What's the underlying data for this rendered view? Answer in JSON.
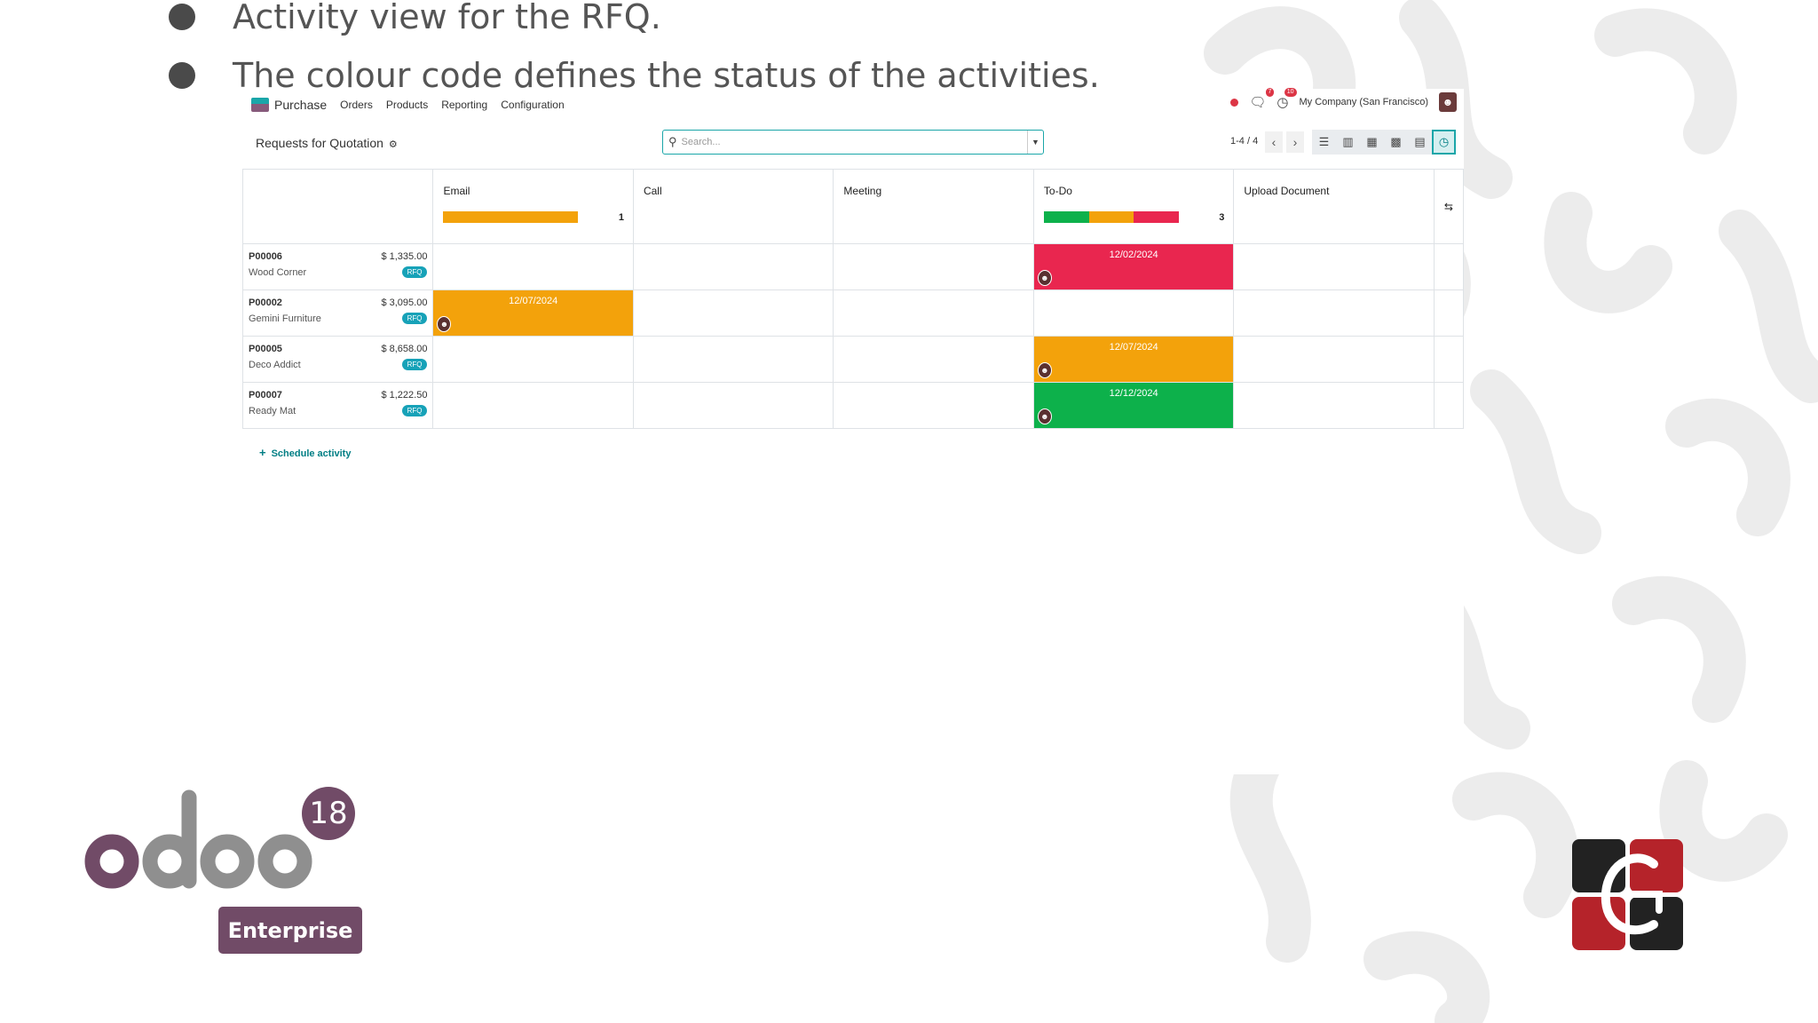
{
  "slide": {
    "bullets": [
      "Activity view for the RFQ.",
      "The colour code defines the status of the activities."
    ]
  },
  "navbar": {
    "app_name": "Purchase",
    "menu": [
      "Orders",
      "Products",
      "Reporting",
      "Configuration"
    ],
    "message_count": "7",
    "activity_count": "10",
    "company": "My Company (San Francisco)"
  },
  "control": {
    "title": "Requests for Quotation",
    "search_placeholder": "Search...",
    "pager": "1-4 / 4"
  },
  "activity": {
    "columns": [
      {
        "label": "Email",
        "count": "1"
      },
      {
        "label": "Call",
        "count": ""
      },
      {
        "label": "Meeting",
        "count": ""
      },
      {
        "label": "To-Do",
        "count": "3"
      },
      {
        "label": "Upload Document",
        "count": ""
      }
    ],
    "status_colors": {
      "overdue": "#e9264f",
      "today": "#f3a20b",
      "planned": "#0db14b"
    },
    "rows": [
      {
        "name": "P00006",
        "amount": "$ 1,335.00",
        "partner": "Wood Corner",
        "badge": "RFQ",
        "todo_date": "12/02/2024"
      },
      {
        "name": "P00002",
        "amount": "$ 3,095.00",
        "partner": "Gemini Furniture",
        "badge": "RFQ",
        "email_date": "12/07/2024"
      },
      {
        "name": "P00005",
        "amount": "$ 8,658.00",
        "partner": "Deco Addict",
        "badge": "RFQ",
        "todo_date": "12/07/2024"
      },
      {
        "name": "P00007",
        "amount": "$ 1,222.50",
        "partner": "Ready Mat",
        "badge": "RFQ",
        "todo_date": "12/12/2024"
      }
    ],
    "schedule_label": "Schedule activity"
  },
  "branding": {
    "odoo_version": "18",
    "edition": "Enterprise",
    "odoo_color": "#714b67"
  }
}
